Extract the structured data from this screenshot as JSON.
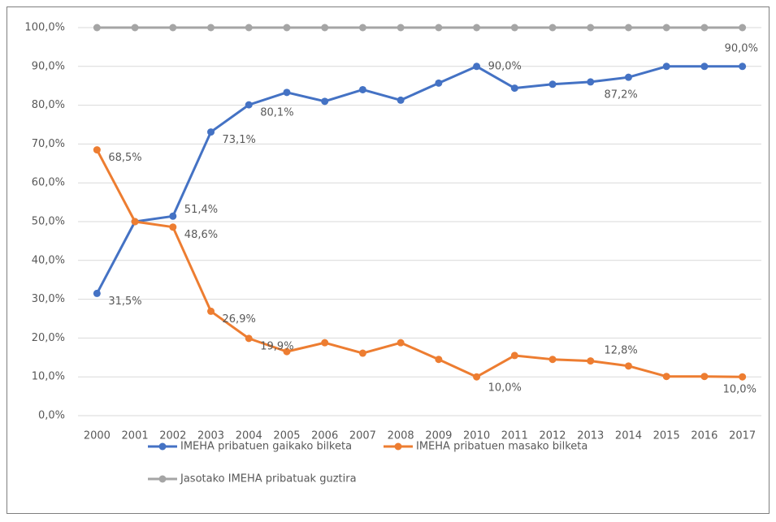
{
  "chart_data": {
    "type": "line",
    "categories": [
      "2000",
      "2001",
      "2002",
      "2003",
      "2004",
      "2005",
      "2006",
      "2007",
      "2008",
      "2009",
      "2010",
      "2011",
      "2012",
      "2013",
      "2014",
      "2015",
      "2016",
      "2017"
    ],
    "series": [
      {
        "name": "IMEHA pribatuen gaikako bilketa",
        "color": "#4472c4",
        "values": [
          31.5,
          50.0,
          51.4,
          73.1,
          80.1,
          83.3,
          81.0,
          84.0,
          81.3,
          85.7,
          90.0,
          84.4,
          85.4,
          86.0,
          87.2,
          90.0,
          90.0,
          90.0
        ],
        "value_labels": [
          "31,5%",
          null,
          "51,4%",
          "73,1%",
          "80,1%",
          null,
          null,
          null,
          null,
          null,
          "90,0%",
          null,
          null,
          null,
          "87,2%",
          null,
          null,
          "90,0%"
        ]
      },
      {
        "name": "IMEHA pribatuen masako bilketa",
        "color": "#ed7d31",
        "values": [
          68.5,
          50.0,
          48.6,
          26.9,
          19.9,
          16.5,
          18.8,
          16.1,
          18.8,
          14.5,
          10.0,
          15.5,
          14.5,
          14.1,
          12.8,
          10.1,
          10.1,
          10.0
        ],
        "value_labels": [
          "68,5%",
          null,
          "48,6%",
          "26,9%",
          "19,9%",
          null,
          null,
          null,
          null,
          null,
          "10,0%",
          null,
          null,
          null,
          "12,8%",
          null,
          null,
          "10,0%"
        ]
      },
      {
        "name": "Jasotako IMEHA pribatuak guztira",
        "color": "#a5a5a5",
        "values": [
          100,
          100,
          100,
          100,
          100,
          100,
          100,
          100,
          100,
          100,
          100,
          100,
          100,
          100,
          100,
          100,
          100,
          100
        ]
      }
    ],
    "ylim": [
      0,
      100
    ],
    "yticks": [
      {
        "value": 0,
        "label": "0,0%"
      },
      {
        "value": 10,
        "label": "10,0%"
      },
      {
        "value": 20,
        "label": "20,0%"
      },
      {
        "value": 30,
        "label": "30,0%"
      },
      {
        "value": 40,
        "label": "40,0%"
      },
      {
        "value": 50,
        "label": "50,0%"
      },
      {
        "value": 60,
        "label": "60,0%"
      },
      {
        "value": 70,
        "label": "70,0%"
      },
      {
        "value": 80,
        "label": "80,0%"
      },
      {
        "value": 90,
        "label": "90,0%"
      },
      {
        "value": 100,
        "label": "100,0%"
      }
    ],
    "grid": true,
    "legend": "bottom"
  }
}
